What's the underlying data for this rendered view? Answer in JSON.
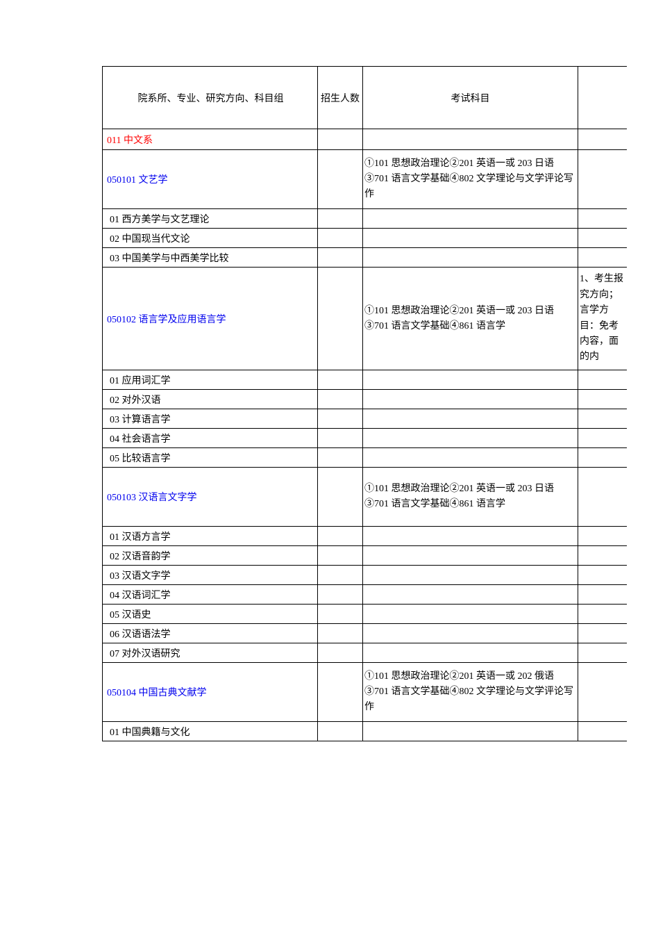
{
  "headers": {
    "col1": "院系所、专业、研究方向、科目组",
    "col2": "招生人数",
    "col3": "考试科目",
    "col4": ""
  },
  "department": {
    "label": "011 中文系"
  },
  "majors": [
    {
      "code_label": "050101 文艺学",
      "exam": "①101 思想政治理论②201 英语一或 203 日语③701 语言文学基础④802 文学理论与文学评论写作",
      "note": "",
      "height_class": "row-major-tall",
      "subs": [
        "01 西方美学与文艺理论",
        "02 中国现当代文论",
        "03 中国美学与中西美学比较"
      ]
    },
    {
      "code_label": "050102 语言学及应用语言学",
      "exam": "①101 思想政治理论②201 英语一或 203 日语③701 语言文学基础④861 语言学",
      "note": "1、考生报究方向；言学方目：免考内容，面的内",
      "height_class": "row-major-extra-tall",
      "subs": [
        "01 应用词汇学",
        "02 对外汉语",
        "03 计算语言学",
        "04 社会语言学",
        "05 比较语言学"
      ]
    },
    {
      "code_label": "050103 汉语言文字学",
      "exam": "①101 思想政治理论②201 英语一或 203 日语③701 语言文学基础④861 语言学",
      "note": "",
      "height_class": "row-major-tall",
      "subs": [
        "01 汉语方言学",
        "02 汉语音韵学",
        "03 汉语文字学",
        "04 汉语词汇学",
        "05 汉语史",
        "06 汉语语法学",
        "07 对外汉语研究"
      ]
    },
    {
      "code_label": "050104 中国古典文献学",
      "exam": "①101 思想政治理论②201 英语一或 202 俄语③701 语言文学基础④802 文学理论与文学评论写作",
      "note": "",
      "height_class": "row-major-tall",
      "subs": [
        "01 中国典籍与文化"
      ]
    }
  ]
}
